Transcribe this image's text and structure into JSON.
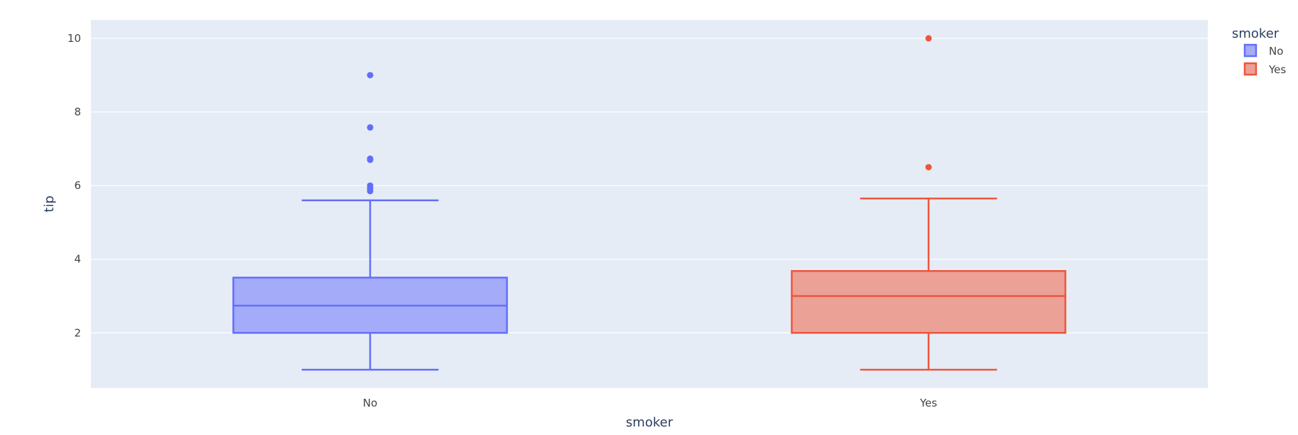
{
  "chart_data": {
    "type": "box",
    "xlabel": "smoker",
    "ylabel": "tip",
    "ylim": [
      0.5,
      10.5
    ],
    "yticks": [
      2,
      4,
      6,
      8,
      10
    ],
    "categories": [
      "No",
      "Yes"
    ],
    "legend": {
      "title": "smoker",
      "position": "top-right"
    },
    "grid": true,
    "colors": {
      "plot_bg": "#e5ecf6",
      "grid": "#ffffff"
    },
    "series": [
      {
        "name": "No",
        "color": "#636efa",
        "fill": "#a4abf8",
        "min": 1.0,
        "q1": 2.0,
        "median": 2.74,
        "q3": 3.5,
        "max": 5.6,
        "outliers": [
          9.0,
          7.58,
          6.73,
          6.7,
          6.0,
          5.92,
          5.85
        ]
      },
      {
        "name": "Yes",
        "color": "#ef553b",
        "fill": "#eba196",
        "min": 1.0,
        "q1": 2.0,
        "median": 3.0,
        "q3": 3.68,
        "max": 5.65,
        "outliers": [
          10.0,
          6.5
        ]
      }
    ]
  }
}
